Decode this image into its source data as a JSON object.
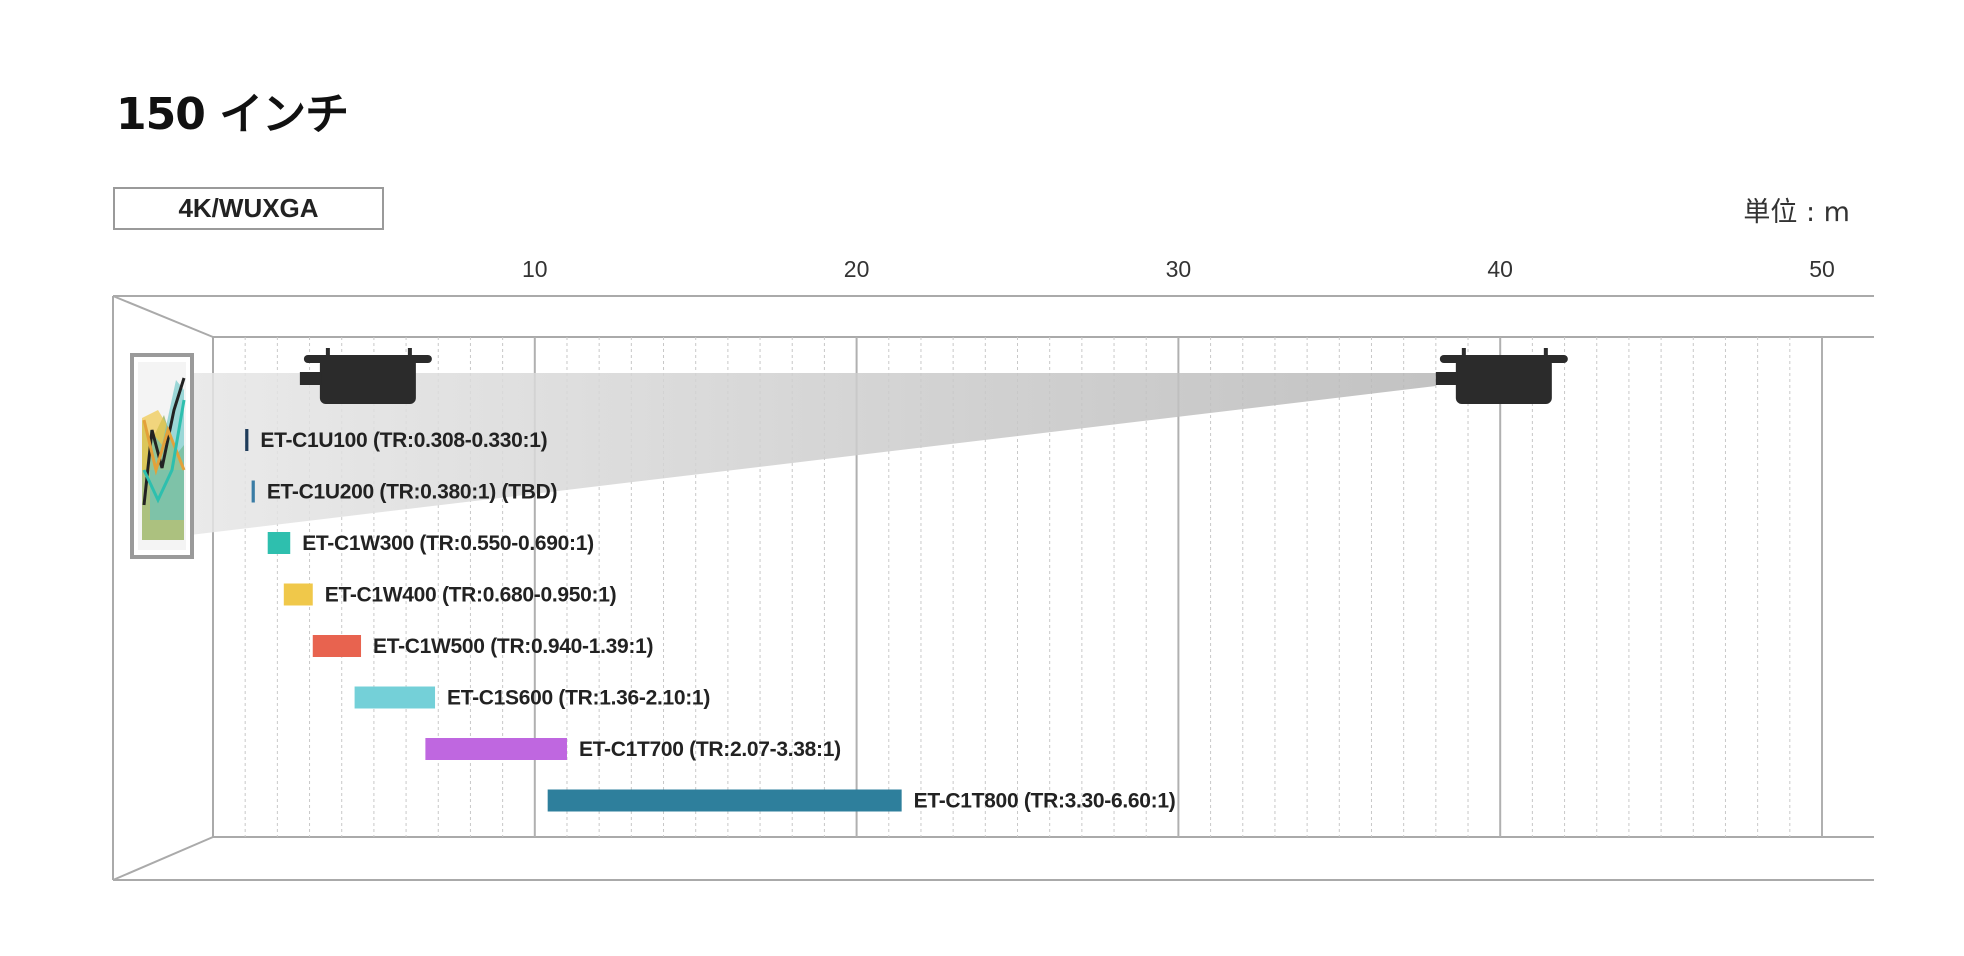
{
  "page": {
    "title": "150 インチ",
    "resolution_label": "4K/WUXGA",
    "unit_label": "単位 : m"
  },
  "chart_data": {
    "type": "bar",
    "orientation": "horizontal-range",
    "title": "150 インチ",
    "xlabel": "",
    "unit": "m",
    "xlim": [
      0,
      50
    ],
    "xticks": [
      10,
      20,
      30,
      40,
      50
    ],
    "grid": true,
    "series": [
      {
        "label": "ET-C1U100 (TR:0.308-0.330:1)",
        "min": 1.0,
        "max": 1.1,
        "color": "#1f3c5a"
      },
      {
        "label": "ET-C1U200 (TR:0.380:1) (TBD)",
        "min": 1.2,
        "max": 1.3,
        "color": "#3a7ca5"
      },
      {
        "label": "ET-C1W300 (TR:0.550-0.690:1)",
        "min": 1.7,
        "max": 2.4,
        "color": "#2ebfae"
      },
      {
        "label": "ET-C1W400 (TR:0.680-0.950:1)",
        "min": 2.2,
        "max": 3.1,
        "color": "#f0c84a"
      },
      {
        "label": "ET-C1W500 (TR:0.940-1.39:1)",
        "min": 3.1,
        "max": 4.6,
        "color": "#e8634f"
      },
      {
        "label": "ET-C1S600 (TR:1.36-2.10:1)",
        "min": 4.4,
        "max": 6.9,
        "color": "#74d0d8"
      },
      {
        "label": "ET-C1T700 (TR:2.07-3.38:1)",
        "min": 6.6,
        "max": 11.0,
        "color": "#bf67e0"
      },
      {
        "label": "ET-C1T800 (TR:3.30-6.60:1)",
        "min": 10.4,
        "max": 21.4,
        "color": "#2e7f9c"
      }
    ],
    "projector_near_m": 2.7,
    "projector_far_m": 38.0
  }
}
